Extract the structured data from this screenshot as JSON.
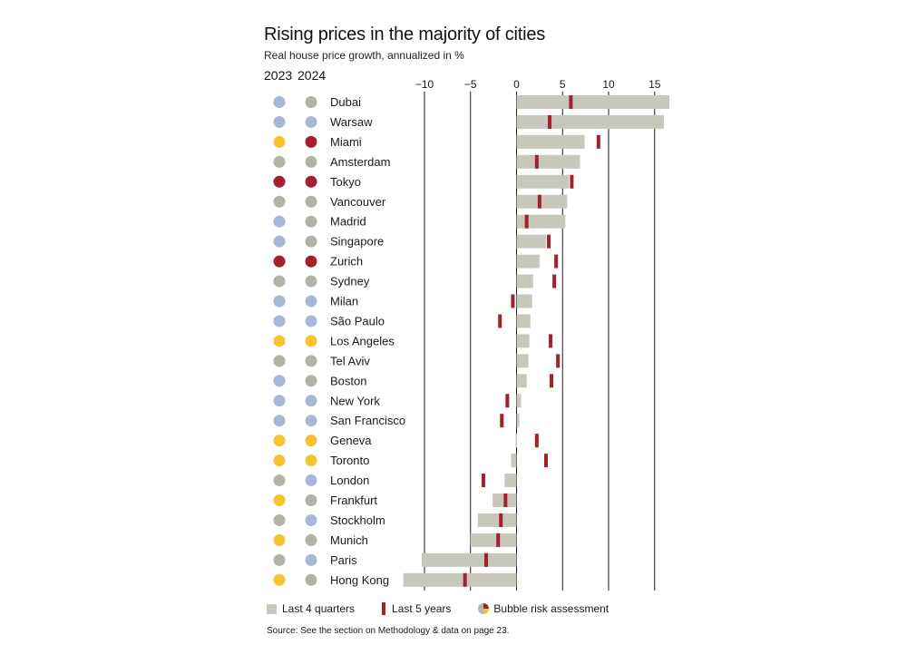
{
  "chart_data": {
    "type": "bar",
    "title": "Rising prices in the majority of cities",
    "subtitle": "Real house price growth, annualized in %",
    "column_headers": [
      "2023",
      "2024"
    ],
    "x_ticks": [
      "−10",
      "−5",
      "0",
      "5",
      "10",
      "15"
    ],
    "x_tick_values": [
      -10,
      -5,
      0,
      5,
      10,
      15
    ],
    "xlim": [
      -12.5,
      16.8
    ],
    "categories": [
      "Dubai",
      "Warsaw",
      "Miami",
      "Amsterdam",
      "Tokyo",
      "Vancouver",
      "Madrid",
      "Singapore",
      "Zurich",
      "Sydney",
      "Milan",
      "São Paulo",
      "Los Angeles",
      "Tel Aviv",
      "Boston",
      "New York",
      "San Francisco",
      "Geneva",
      "Toronto",
      "London",
      "Frankfurt",
      "Stockholm",
      "Munich",
      "Paris",
      "Hong Kong"
    ],
    "series": [
      {
        "name": "Last 4 quarters",
        "values": [
          16.6,
          16.0,
          7.4,
          6.9,
          5.7,
          5.5,
          5.3,
          3.2,
          2.5,
          1.8,
          1.7,
          1.5,
          1.4,
          1.3,
          1.1,
          0.5,
          0.3,
          -0.1,
          -0.6,
          -1.3,
          -2.6,
          -4.2,
          -5.0,
          -10.3,
          -12.3
        ]
      },
      {
        "name": "Last 5 years",
        "values": [
          5.9,
          3.6,
          8.9,
          2.2,
          6.0,
          2.5,
          1.1,
          3.5,
          4.3,
          4.1,
          -0.4,
          -1.8,
          3.7,
          4.5,
          3.8,
          -1.0,
          -1.6,
          2.2,
          3.2,
          -3.6,
          -1.2,
          -1.7,
          -2.0,
          -3.3,
          -5.6
        ]
      }
    ],
    "bubble_risk_2023": [
      "blue",
      "blue",
      "yellow",
      "gray",
      "red",
      "gray",
      "blue",
      "blue",
      "red",
      "gray",
      "blue",
      "blue",
      "yellow",
      "gray",
      "blue",
      "blue",
      "blue",
      "yellow",
      "yellow",
      "gray",
      "yellow",
      "gray",
      "yellow",
      "gray",
      "yellow"
    ],
    "bubble_risk_2024": [
      "gray",
      "blue",
      "red",
      "gray",
      "red",
      "gray",
      "gray",
      "gray",
      "red",
      "gray",
      "blue",
      "blue",
      "yellow",
      "gray",
      "gray",
      "blue",
      "blue",
      "yellow",
      "yellow",
      "blue",
      "gray",
      "blue",
      "gray",
      "blue",
      "gray"
    ],
    "risk_colors": {
      "blue": "#a8b6d8",
      "gray": "#b3b2a6",
      "yellow": "#f5c430",
      "red": "#a3202c"
    },
    "bar_color": "#c8c7bc",
    "marker_color": "#a3202c",
    "legend": [
      "Last 4 quarters",
      "Last 5 years",
      "Bubble risk assessment"
    ],
    "source": "Source: See the section on Methodology & data on page 23."
  }
}
